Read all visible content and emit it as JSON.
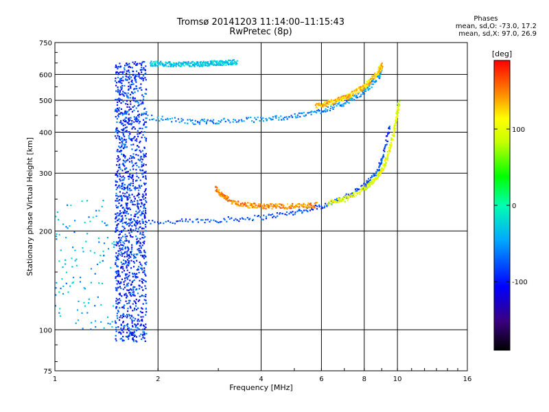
{
  "header": {
    "title": "Tromsø 20141203 11:14:00–11:15:43",
    "subtitle": "RwPretec (8p)"
  },
  "stats": {
    "heading": "Phases",
    "line_o": "mean, sd,O: -73.0, 17.2",
    "line_x": "mean, sd,X:  97.0, 26.9"
  },
  "colorbar": {
    "unit_label": "[deg]",
    "ticks": [
      {
        "value": 100,
        "label": "100"
      },
      {
        "value": 0,
        "label": "0"
      },
      {
        "value": -100,
        "label": "-100"
      }
    ],
    "range": [
      -190,
      190
    ]
  },
  "chart_data": {
    "type": "scatter",
    "title": "Tromsø 20141203 11:14:00–11:15:43",
    "subtitle": "RwPretec (8p)",
    "xlabel": "Frequency [MHz]",
    "ylabel": "Stationary phase Virtual Height [km]",
    "xscale": "log",
    "yscale": "log",
    "xlim": [
      1,
      16
    ],
    "ylim": [
      75,
      750
    ],
    "xticks": [
      1,
      2,
      4,
      6,
      8,
      10,
      16
    ],
    "xtick_labels": [
      "1",
      "2",
      "4",
      "6",
      "8",
      "10",
      "16"
    ],
    "yticks": [
      75,
      100,
      200,
      300,
      400,
      500,
      600,
      750
    ],
    "ytick_labels": [
      "75",
      "100",
      "200",
      "300",
      "400",
      "500",
      "600",
      "750"
    ],
    "grid": true,
    "color_axis": {
      "label": "[deg]",
      "min": -190,
      "max": 190
    },
    "traces": [
      {
        "f": [
          1.5,
          2.2,
          3.0,
          4.0,
          5.0,
          6.0,
          7.0,
          8.0,
          8.7,
          9.1,
          9.5
        ],
        "h": [
          215,
          213,
          216,
          220,
          228,
          238,
          252,
          275,
          300,
          340,
          420
        ],
        "phase": -80
      },
      {
        "f": [
          6.3,
          7.0,
          8.0,
          8.7,
          9.2,
          9.6,
          9.9,
          10.1
        ],
        "h": [
          244,
          250,
          268,
          290,
          320,
          370,
          430,
          490
        ],
        "phase": 100
      },
      {
        "f": [
          1.85,
          2.5,
          3.0,
          4.0,
          5.0,
          6.0,
          7.0,
          8.0,
          8.8,
          9.0
        ],
        "h": [
          445,
          430,
          432,
          438,
          447,
          465,
          490,
          530,
          590,
          630
        ],
        "phase": -55
      },
      {
        "f": [
          5.8,
          6.5,
          7.2,
          8.0,
          8.8,
          9.0
        ],
        "h": [
          480,
          495,
          515,
          550,
          610,
          640
        ],
        "phase": 130
      },
      {
        "f": [
          2.95,
          3.1,
          3.3,
          3.6,
          3.9,
          4.3,
          4.8,
          5.3,
          5.8
        ],
        "h": [
          270,
          255,
          245,
          240,
          238,
          238,
          238,
          239,
          240
        ],
        "phase": 145
      },
      {
        "f": [
          1.9,
          2.2,
          2.6,
          3.0,
          3.4
        ],
        "h": [
          648,
          645,
          645,
          650,
          655
        ],
        "phase": -30
      }
    ],
    "spread": {
      "f_range": [
        1.5,
        1.85
      ],
      "h_range": [
        92,
        660
      ],
      "phase": -90
    }
  }
}
